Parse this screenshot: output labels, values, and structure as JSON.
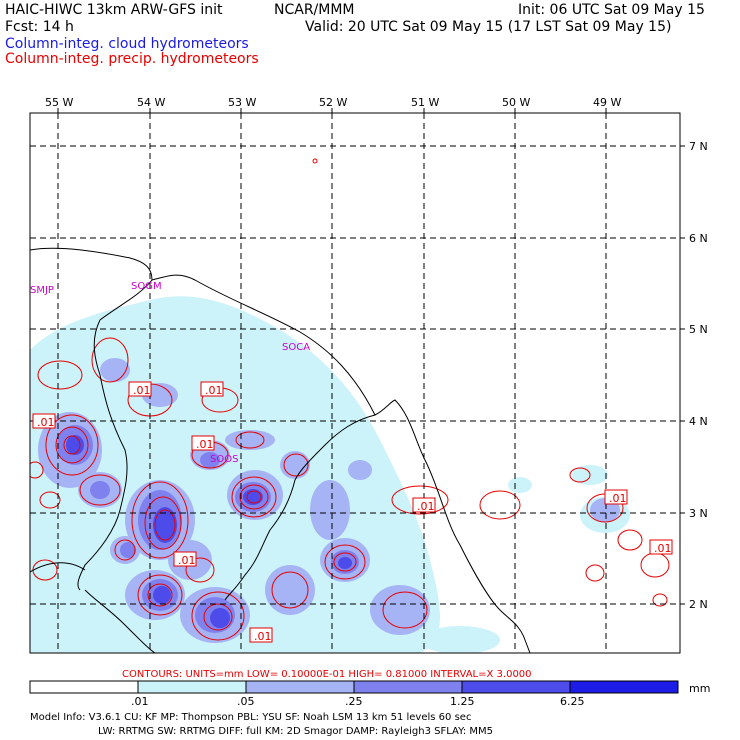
{
  "header": {
    "model": "HAIC-HIWC 13km ARW-GFS init",
    "org": "NCAR/MMM",
    "init": "Init: 06 UTC Sat 09 May 15",
    "fcst": "Fcst:    14 h",
    "valid": "Valid: 20 UTC Sat 09 May 15 (17 LST Sat 09 May 15)",
    "legend_cloud": "Column-integ. cloud hydrometeors",
    "legend_precip": "Column-integ. precip. hydrometeors"
  },
  "map": {
    "lon_labels": [
      "55 W",
      "54 W",
      "53 W",
      "52 W",
      "51 W",
      "50 W",
      "49 W"
    ],
    "lat_labels": [
      "7 N",
      "6 N",
      "5 N",
      "4 N",
      "3 N",
      "2 N"
    ],
    "stations": [
      "SMJP",
      "SOGM",
      "SOCA",
      "SOOS"
    ],
    "contour_label": ".01",
    "colors": {
      "cloud_1": "#ccf2fa",
      "cloud_2": "#a6b4f5",
      "cloud_3": "#7f82ee",
      "cloud_4": "#4d4cea",
      "precip": "#e60000",
      "station": "#cc00cc",
      "blue_text": "#1a1ae6"
    }
  },
  "contour_info": "CONTOURS:  UNITS=mm   LOW= 0.10000E-01   HIGH= 0.81000      INTERVAL=X  3.0000",
  "colorbar": {
    "ticks": [
      ".01",
      ".05",
      ".25",
      "1.25",
      "6.25"
    ],
    "unit": "mm",
    "colors": [
      "#ffffff",
      "#ccf2fa",
      "#a6b4f5",
      "#7f82ee",
      "#4d4cea",
      "#1c1ce6"
    ]
  },
  "footer": {
    "line1": "Model Info: V3.6.1     CU: KF       MP: Thompson      PBL: YSU        SF: Noah LSM      13 km    51 levels   60 sec",
    "line2": "LW: RRTMG     SW: RRTMG   DIFF: full    KM: 2D Smagor  DAMP: Rayleigh3    SFLAY: MM5"
  }
}
